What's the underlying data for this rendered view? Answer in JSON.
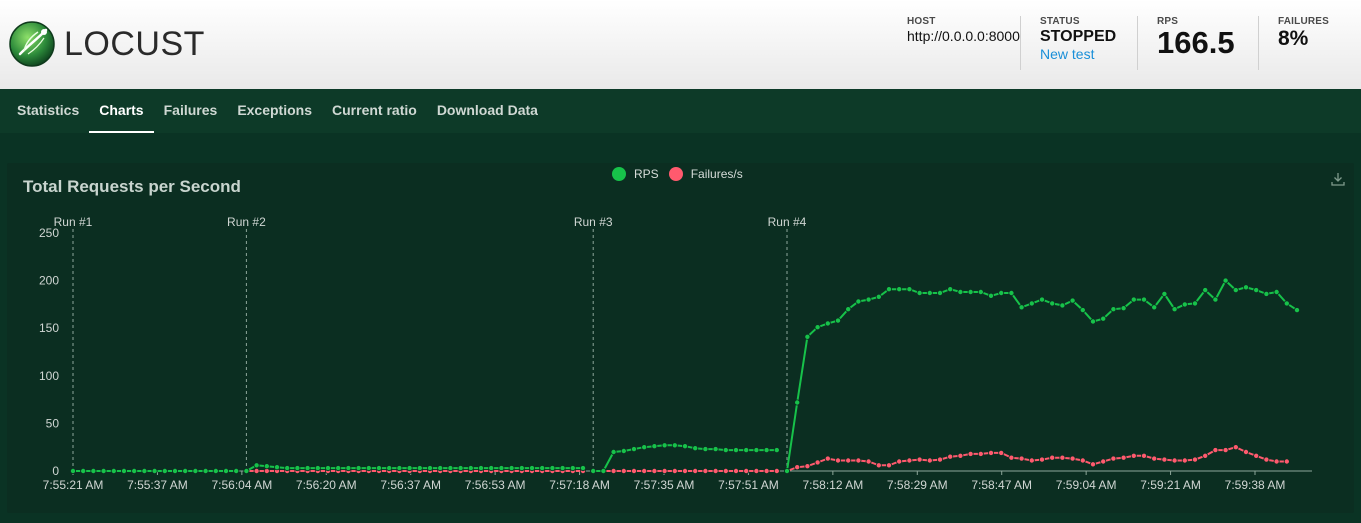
{
  "app": {
    "name": "LOCUST"
  },
  "header": {
    "host_label": "HOST",
    "host_value": "http://0.0.0.0:8000",
    "status_label": "STATUS",
    "status_value": "STOPPED",
    "new_test_label": "New test",
    "rps_label": "RPS",
    "rps_value": "166.5",
    "failures_label": "FAILURES",
    "failures_value": "8%"
  },
  "tabs": [
    {
      "label": "Statistics",
      "active": false
    },
    {
      "label": "Charts",
      "active": true
    },
    {
      "label": "Failures",
      "active": false
    },
    {
      "label": "Exceptions",
      "active": false
    },
    {
      "label": "Current ratio",
      "active": false
    },
    {
      "label": "Download Data",
      "active": false
    }
  ],
  "colors": {
    "rps": "#17c24a",
    "failures": "#ff5a6e",
    "axis_text": "#d0d6d3",
    "grid": "#8ea79a"
  },
  "chart_data": {
    "type": "line",
    "title": "Total Requests per Second",
    "legend": [
      "RPS",
      "Failures/s"
    ],
    "legend_position": "top-center",
    "ylim": [
      0,
      250
    ],
    "yticks": [
      0,
      50,
      100,
      150,
      200,
      250
    ],
    "xtick_labels": [
      "7:55:21 AM",
      "7:55:37 AM",
      "7:56:04 AM",
      "7:56:20 AM",
      "7:56:37 AM",
      "7:56:53 AM",
      "7:57:18 AM",
      "7:57:35 AM",
      "7:57:51 AM",
      "7:58:12 AM",
      "7:58:29 AM",
      "7:58:47 AM",
      "7:59:04 AM",
      "7:59:21 AM",
      "7:59:38 AM"
    ],
    "run_markers": [
      {
        "label": "Run #1",
        "index": 0
      },
      {
        "label": "Run #2",
        "index": 17
      },
      {
        "label": "Run #3",
        "index": 51
      },
      {
        "label": "Run #4",
        "index": 70
      }
    ],
    "series": [
      {
        "name": "RPS",
        "values": [
          0,
          0,
          0,
          0,
          0,
          0,
          0,
          0,
          0,
          0,
          0,
          0,
          0,
          0,
          0,
          0,
          0,
          0,
          6,
          5,
          4,
          3,
          3,
          3,
          3,
          3,
          3,
          3,
          3,
          3,
          3,
          3,
          3,
          3,
          3,
          3,
          3,
          3,
          3,
          3,
          3,
          3,
          3,
          3,
          3,
          3,
          3,
          3,
          3,
          3,
          3,
          0,
          0,
          20,
          21,
          23,
          25,
          26,
          27,
          27,
          26,
          24,
          23,
          23,
          22,
          22,
          22,
          22,
          22,
          22,
          0,
          72,
          141,
          151,
          155,
          158,
          170,
          178,
          180,
          183,
          191,
          191,
          191,
          187,
          187,
          187,
          191,
          188,
          188,
          188,
          184,
          187,
          187,
          172,
          176,
          180,
          176,
          174,
          179,
          169,
          157,
          160,
          170,
          171,
          180,
          180,
          172,
          186,
          170,
          175,
          176,
          190,
          180,
          200,
          190,
          193,
          190,
          186,
          188,
          176,
          169
        ]
      },
      {
        "name": "Failures/s",
        "values": [
          0,
          0,
          0,
          0,
          0,
          0,
          0,
          0,
          0,
          0,
          0,
          0,
          0,
          0,
          0,
          0,
          0,
          0,
          0,
          0,
          0,
          0,
          0,
          0,
          0,
          0,
          0,
          0,
          0,
          0,
          0,
          0,
          0,
          0,
          0,
          0,
          0,
          0,
          0,
          0,
          0,
          0,
          0,
          0,
          0,
          0,
          0,
          0,
          0,
          0,
          0,
          0,
          0,
          0,
          0,
          0,
          0,
          0,
          0,
          0,
          0,
          0,
          0,
          0,
          0,
          0,
          0,
          0,
          0,
          0,
          0,
          4,
          5,
          9,
          13,
          11,
          11,
          11,
          10,
          6,
          6,
          10,
          11,
          12,
          11,
          12,
          15,
          16,
          18,
          18,
          19,
          19,
          14,
          13,
          11,
          12,
          14,
          14,
          13,
          11,
          7,
          10,
          13,
          14,
          16,
          16,
          13,
          12,
          11,
          11,
          12,
          16,
          22,
          22,
          25,
          20,
          16,
          12,
          10,
          10
        ]
      }
    ]
  }
}
